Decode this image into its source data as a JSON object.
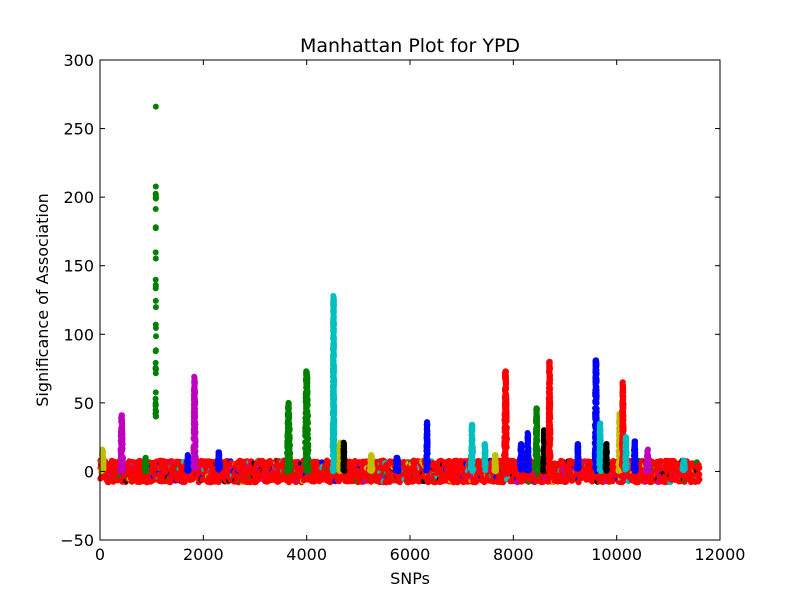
{
  "chart_data": {
    "type": "scatter",
    "title": "Manhattan Plot for YPD",
    "xlabel": "SNPs",
    "ylabel": "Significance of Association",
    "xlim": [
      0,
      12000
    ],
    "ylim": [
      -50,
      300
    ],
    "xticks": [
      0,
      2000,
      4000,
      6000,
      8000,
      10000,
      12000
    ],
    "yticks": [
      -50,
      0,
      50,
      100,
      150,
      200,
      250,
      300
    ],
    "xtick_labels": [
      "0",
      "2000",
      "4000",
      "6000",
      "8000",
      "10000",
      "12000"
    ],
    "ytick_labels": [
      "−50",
      "0",
      "50",
      "100",
      "150",
      "200",
      "250",
      "300"
    ],
    "grid": false,
    "legend": "none",
    "marker_colors": [
      "#0000ff",
      "#008000",
      "#ff0000",
      "#00bfbf",
      "#bf00bf",
      "#bfbf00",
      "#000000"
    ],
    "baseline": {
      "x_start": 0,
      "x_end": 11600,
      "y_min": -8,
      "y_max": 8,
      "color": "#ff0000"
    },
    "peaks": [
      {
        "x": 50,
        "width": 60,
        "ymax": 16,
        "color": "#bfbf00"
      },
      {
        "x": 420,
        "width": 60,
        "ymax": 41,
        "color": "#bf00bf"
      },
      {
        "x": 880,
        "width": 40,
        "ymax": 10,
        "color": "#008000"
      },
      {
        "x": 1080,
        "width": 10,
        "ymax": 266,
        "color": "#008000",
        "scatter": true
      },
      {
        "x": 1700,
        "width": 40,
        "ymax": 12,
        "color": "#0000ff"
      },
      {
        "x": 1830,
        "width": 50,
        "ymax": 69,
        "color": "#bf00bf"
      },
      {
        "x": 2300,
        "width": 60,
        "ymax": 14,
        "color": "#0000ff"
      },
      {
        "x": 3650,
        "width": 80,
        "ymax": 50,
        "color": "#008000"
      },
      {
        "x": 4000,
        "width": 80,
        "ymax": 73,
        "color": "#008000"
      },
      {
        "x": 4520,
        "width": 40,
        "ymax": 128,
        "color": "#00bfbf"
      },
      {
        "x": 4650,
        "width": 50,
        "ymax": 21,
        "color": "#bfbf00"
      },
      {
        "x": 4720,
        "width": 30,
        "ymax": 21,
        "color": "#000000"
      },
      {
        "x": 5250,
        "width": 60,
        "ymax": 12,
        "color": "#bfbf00"
      },
      {
        "x": 5750,
        "width": 80,
        "ymax": 10,
        "color": "#0000ff"
      },
      {
        "x": 6330,
        "width": 40,
        "ymax": 36,
        "color": "#0000ff"
      },
      {
        "x": 7200,
        "width": 60,
        "ymax": 34,
        "color": "#00bfbf"
      },
      {
        "x": 7450,
        "width": 40,
        "ymax": 20,
        "color": "#00bfbf"
      },
      {
        "x": 7650,
        "width": 40,
        "ymax": 12,
        "color": "#bfbf00"
      },
      {
        "x": 7850,
        "width": 70,
        "ymax": 73,
        "color": "#ff0000"
      },
      {
        "x": 8150,
        "width": 60,
        "ymax": 20,
        "color": "#0000ff"
      },
      {
        "x": 8280,
        "width": 50,
        "ymax": 28,
        "color": "#0000ff"
      },
      {
        "x": 8450,
        "width": 50,
        "ymax": 46,
        "color": "#008000"
      },
      {
        "x": 8600,
        "width": 60,
        "ymax": 30,
        "color": "#000000"
      },
      {
        "x": 8700,
        "width": 50,
        "ymax": 80,
        "color": "#ff0000"
      },
      {
        "x": 9250,
        "width": 40,
        "ymax": 20,
        "color": "#0000ff"
      },
      {
        "x": 9600,
        "width": 60,
        "ymax": 81,
        "color": "#0000ff"
      },
      {
        "x": 9680,
        "width": 40,
        "ymax": 35,
        "color": "#00bfbf"
      },
      {
        "x": 9800,
        "width": 40,
        "ymax": 20,
        "color": "#000000"
      },
      {
        "x": 10060,
        "width": 60,
        "ymax": 42,
        "color": "#bfbf00"
      },
      {
        "x": 10120,
        "width": 50,
        "ymax": 65,
        "color": "#ff0000"
      },
      {
        "x": 10180,
        "width": 40,
        "ymax": 25,
        "color": "#00bfbf"
      },
      {
        "x": 10350,
        "width": 50,
        "ymax": 22,
        "color": "#0000ff"
      },
      {
        "x": 10600,
        "width": 60,
        "ymax": 16,
        "color": "#bf00bf"
      },
      {
        "x": 11300,
        "width": 60,
        "ymax": 8,
        "color": "#00bfbf"
      }
    ]
  }
}
